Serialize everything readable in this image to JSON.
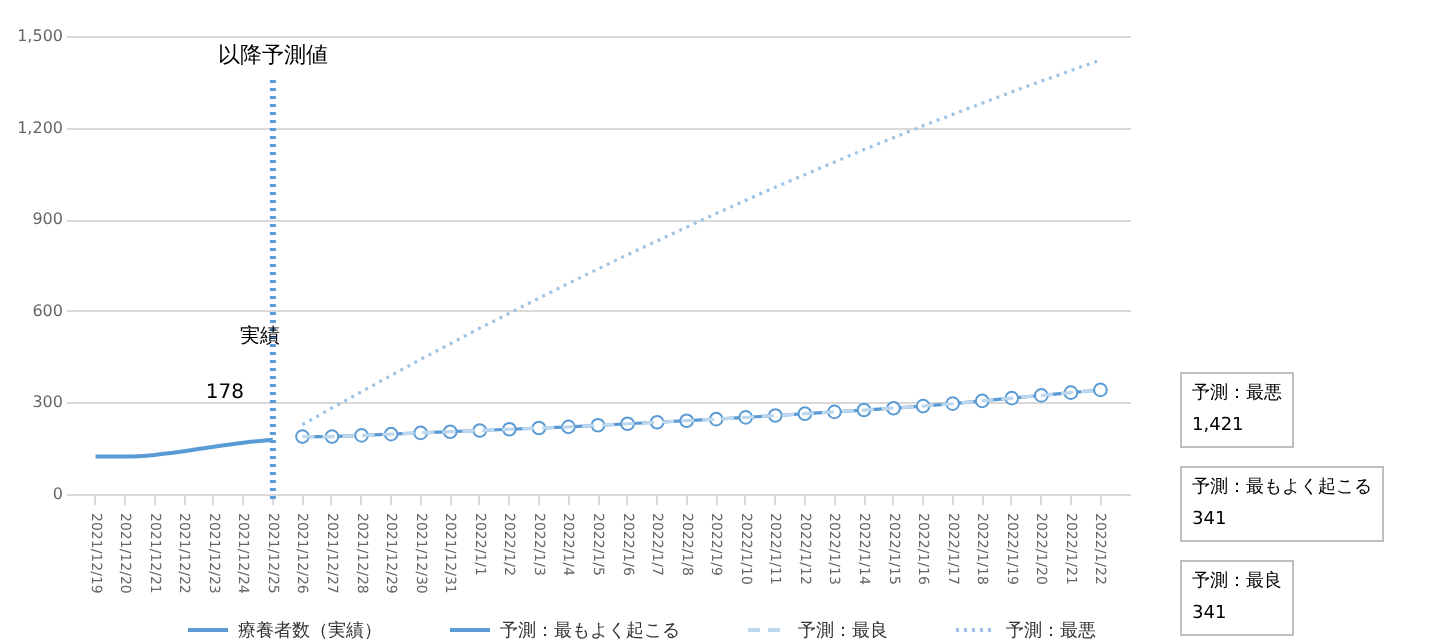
{
  "chart_data": {
    "type": "line",
    "categories": [
      "2021/12/19",
      "2021/12/20",
      "2021/12/21",
      "2021/12/22",
      "2021/12/23",
      "2021/12/24",
      "2021/12/25",
      "2021/12/26",
      "2021/12/27",
      "2021/12/28",
      "2021/12/29",
      "2021/12/30",
      "2021/12/31",
      "2022/1/1",
      "2022/1/2",
      "2022/1/3",
      "2022/1/4",
      "2022/1/5",
      "2022/1/6",
      "2022/1/7",
      "2022/1/8",
      "2022/1/9",
      "2022/1/10",
      "2022/1/11",
      "2022/1/12",
      "2022/1/13",
      "2022/1/14",
      "2022/1/15",
      "2022/1/16",
      "2022/1/17",
      "2022/1/18",
      "2022/1/19",
      "2022/1/20",
      "2022/1/21",
      "2022/1/22"
    ],
    "series": [
      {
        "name": "療養者数（実績）",
        "color": "#5b9bd5",
        "line_style": "solid",
        "marker": "none",
        "value_labels": [
          null,
          null,
          null,
          null,
          null,
          null,
          "178",
          null,
          null,
          null,
          null,
          null,
          null,
          null,
          null,
          null,
          null,
          null,
          null,
          null,
          null,
          null,
          null,
          null,
          null,
          null,
          null,
          null,
          null,
          null,
          null,
          null,
          null,
          null,
          null
        ],
        "values": [
          123,
          123,
          128,
          140,
          155,
          168,
          178,
          null,
          null,
          null,
          null,
          null,
          null,
          null,
          null,
          null,
          null,
          null,
          null,
          null,
          null,
          null,
          null,
          null,
          null,
          null,
          null,
          null,
          null,
          null,
          null,
          null,
          null,
          null,
          null
        ]
      },
      {
        "name": "予測：最もよく起こる",
        "color": "#5b9bd5",
        "line_style": "solid",
        "marker": "circle",
        "values": [
          null,
          null,
          null,
          null,
          null,
          null,
          null,
          188,
          188,
          192,
          196,
          200,
          204,
          208,
          212,
          216,
          220,
          225,
          230,
          235,
          240,
          245,
          251,
          257,
          263,
          269,
          275,
          281,
          288,
          296,
          305,
          314,
          323,
          332,
          341
        ]
      },
      {
        "name": "予測：最良",
        "color": "#bdd7ee",
        "line_style": "dashed",
        "marker": "none",
        "values": [
          null,
          null,
          null,
          null,
          null,
          null,
          null,
          188,
          188,
          192,
          196,
          200,
          204,
          208,
          212,
          216,
          220,
          225,
          230,
          235,
          240,
          245,
          251,
          257,
          263,
          269,
          275,
          281,
          288,
          296,
          305,
          314,
          323,
          332,
          341
        ]
      },
      {
        "name": "予測：最悪",
        "color": "#9dc3e6",
        "line_style": "dotted",
        "marker": "none",
        "values": [
          null,
          null,
          null,
          null,
          null,
          null,
          null,
          227,
          282,
          335,
          388,
          441,
          492,
          543,
          592,
          641,
          690,
          737,
          784,
          829,
          874,
          919,
          962,
          1005,
          1046,
          1087,
          1128,
          1167,
          1206,
          1243,
          1280,
          1317,
          1352,
          1387,
          1421
        ]
      }
    ],
    "ylim": [
      0,
      1500
    ],
    "yticks": [
      0,
      300,
      600,
      900,
      {
        "value": 1200,
        "label": "1,200"
      },
      {
        "value": 1500,
        "label": "1,500"
      }
    ],
    "grid": "y",
    "legend": "bottom",
    "ref_lines": [
      {
        "axis": "x",
        "value": "2021/12/25",
        "label": "以降予測値",
        "color": "#5b9bd5",
        "line_style": "dotted"
      }
    ],
    "annotations": [
      "実績",
      "予測：最悪\n1,421",
      "予測：最もよく起こる\n341",
      "予測：最良\n341"
    ]
  }
}
